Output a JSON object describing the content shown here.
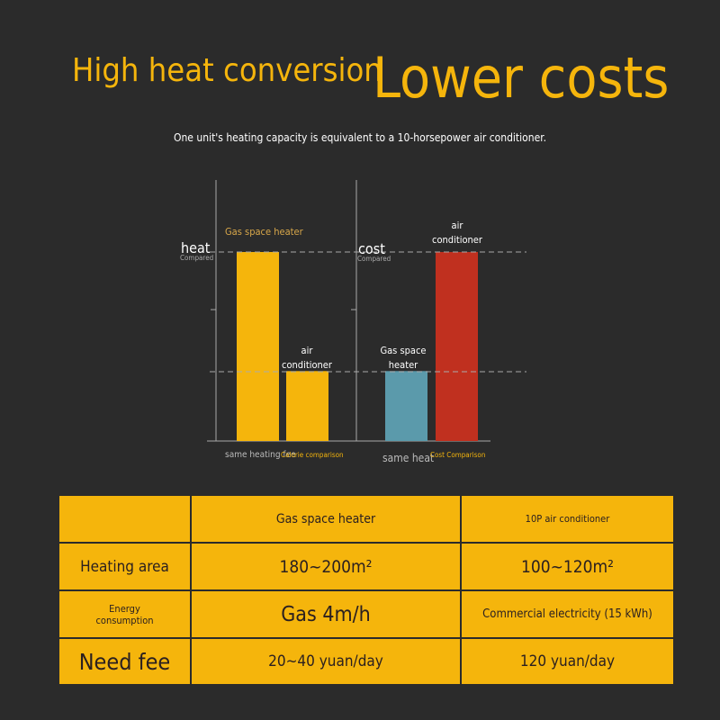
{
  "header": {
    "title_left": "High heat conversion",
    "title_right": "Lower costs",
    "subtitle": "One unit's heating capacity is equivalent to a 10-horsepower air conditioner."
  },
  "charts": [
    {
      "axis_label": "heat",
      "axis_sublabel": "Compared",
      "labels": [
        "Gas space heater",
        "air conditioner"
      ],
      "values": [
        100,
        37
      ],
      "colors": [
        "#f5b50c",
        "#f5b50c"
      ],
      "footer": "same heating fee",
      "caption": "Calorie comparison"
    },
    {
      "axis_label": "cost",
      "axis_sublabel": "Compared",
      "labels": [
        "Gas space heater",
        "air conditioner"
      ],
      "values": [
        37,
        100
      ],
      "colors": [
        "#5b9aab",
        "#c0301f"
      ],
      "footer": "same heat",
      "caption": "Cost Comparison"
    }
  ],
  "table": {
    "header": [
      "Gas space heater",
      "10P air conditioner"
    ],
    "rows": [
      [
        "Heating area",
        "180~200m²",
        "100~120m²"
      ],
      [
        "Energy consumption",
        "Gas 4m/h",
        "Commercial electricity (15 kWh)"
      ],
      [
        "Need fee",
        "20~40 yuan/day",
        "120 yuan/day"
      ]
    ]
  }
}
